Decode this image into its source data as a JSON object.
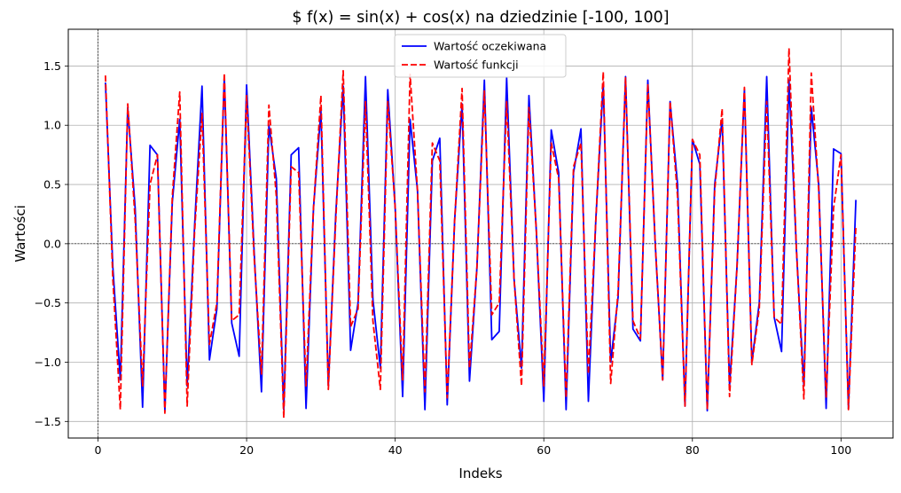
{
  "chart_data": {
    "type": "line",
    "title": "$ f(x) = sin(x) + cos(x) na dziedzinie [-100, 100]",
    "xlabel": "Indeks",
    "ylabel": "Wartości",
    "xlim": [
      -4,
      107
    ],
    "ylim": [
      -1.64,
      1.81
    ],
    "xticks": [
      0,
      20,
      40,
      60,
      80,
      100
    ],
    "yticks": [
      -1.5,
      -1.0,
      -0.5,
      0.0,
      0.5,
      1.0,
      1.5
    ],
    "ytick_labels": [
      "−1.5",
      "−1.0",
      "−0.5",
      "0.0",
      "0.5",
      "1.0",
      "1.5"
    ],
    "grid": true,
    "reference_lines": {
      "x": 0,
      "y": 0
    },
    "legend_position": "top-center",
    "series": [
      {
        "name": "Wartość oczekiwana",
        "color": "#0000ff",
        "style": "solid",
        "x": [
          1,
          2,
          3,
          4,
          5,
          6,
          7,
          8,
          9,
          10,
          11,
          12,
          13,
          14,
          15,
          16,
          17,
          18,
          19,
          20,
          21,
          22,
          23,
          24,
          25,
          26,
          27,
          28,
          29,
          30,
          31,
          32,
          33,
          34,
          35,
          36,
          37,
          38,
          39,
          40,
          41,
          42,
          43,
          44,
          45,
          46,
          47,
          48,
          49,
          50,
          51,
          52,
          53,
          54,
          55,
          56,
          57,
          58,
          59,
          60,
          61,
          62,
          63,
          64,
          65,
          66,
          67,
          68,
          69,
          70,
          71,
          72,
          73,
          74,
          75,
          76,
          77,
          78,
          79,
          80,
          81,
          82,
          83,
          84,
          85,
          86,
          87,
          88,
          89,
          90,
          91,
          92,
          93,
          94,
          95,
          96,
          97,
          98,
          99,
          100,
          101,
          102
        ],
        "values": [
          1.36,
          -0.2,
          -1.15,
          1.15,
          0.3,
          -1.38,
          0.83,
          0.75,
          -1.41,
          0.35,
          1.05,
          -1.2,
          0.15,
          1.33,
          -0.98,
          -0.55,
          1.41,
          -0.67,
          -0.95,
          1.34,
          -0.05,
          -1.25,
          1.0,
          0.55,
          -1.4,
          0.75,
          0.81,
          -1.39,
          0.3,
          1.12,
          -1.2,
          0.25,
          1.33,
          -0.9,
          -0.5,
          1.41,
          -0.47,
          -1.05,
          1.3,
          0.3,
          -1.29,
          1.05,
          0.45,
          -1.4,
          0.7,
          0.89,
          -1.36,
          0.2,
          1.18,
          -1.16,
          -0.2,
          1.38,
          -0.81,
          -0.74,
          1.4,
          -0.3,
          -1.05,
          1.25,
          0.1,
          -1.33,
          0.96,
          0.6,
          -1.4,
          0.6,
          0.97,
          -1.33,
          0.2,
          1.35,
          -1.0,
          -0.45,
          1.41,
          -0.72,
          -0.82,
          1.38,
          0.0,
          -1.15,
          1.2,
          0.5,
          -1.37,
          0.88,
          0.67,
          -1.41,
          0.5,
          1.05,
          -1.2,
          -0.2,
          1.3,
          -1.0,
          -0.5,
          1.41,
          -0.62,
          -0.91,
          1.38,
          -0.05,
          -1.2,
          1.15,
          0.5,
          -1.39,
          0.8,
          0.76,
          -1.39,
          0.37
        ]
      },
      {
        "name": "Wartość funkcji",
        "color": "#ff0000",
        "style": "dashed",
        "x": [
          1,
          2,
          3,
          4,
          5,
          6,
          7,
          8,
          9,
          10,
          11,
          12,
          13,
          14,
          15,
          16,
          17,
          18,
          19,
          20,
          21,
          22,
          23,
          24,
          25,
          26,
          27,
          28,
          29,
          30,
          31,
          32,
          33,
          34,
          35,
          36,
          37,
          38,
          39,
          40,
          41,
          42,
          43,
          44,
          45,
          46,
          47,
          48,
          49,
          50,
          51,
          52,
          53,
          54,
          55,
          56,
          57,
          58,
          59,
          60,
          61,
          62,
          63,
          64,
          65,
          66,
          67,
          68,
          69,
          70,
          71,
          72,
          73,
          74,
          75,
          76,
          77,
          78,
          79,
          80,
          81,
          82,
          83,
          84,
          85,
          86,
          87,
          88,
          89,
          90,
          91,
          92,
          93,
          94,
          95,
          96,
          97,
          98,
          99,
          100,
          101,
          102
        ],
        "values": [
          1.42,
          -0.3,
          -1.4,
          1.18,
          0.2,
          -1.2,
          0.5,
          0.75,
          -1.43,
          0.4,
          1.28,
          -1.37,
          0.1,
          1.1,
          -0.85,
          -0.5,
          1.44,
          -0.65,
          -0.6,
          1.25,
          -0.1,
          -1.1,
          1.17,
          0.4,
          -1.47,
          0.65,
          0.6,
          -1.2,
          0.3,
          1.25,
          -1.23,
          0.2,
          1.46,
          -0.7,
          -0.55,
          1.2,
          -0.65,
          -1.23,
          1.2,
          0.3,
          -1.15,
          1.43,
          0.45,
          -1.25,
          0.85,
          0.7,
          -1.3,
          0.2,
          1.31,
          -1.05,
          -0.2,
          1.29,
          -0.6,
          -0.5,
          1.2,
          -0.3,
          -1.2,
          1.15,
          0.1,
          -1.2,
          0.85,
          0.55,
          -1.3,
          0.65,
          0.85,
          -1.1,
          0.2,
          1.45,
          -1.18,
          -0.4,
          1.4,
          -0.65,
          -0.8,
          1.35,
          0.0,
          -1.15,
          1.2,
          0.4,
          -1.37,
          0.88,
          0.75,
          -1.4,
          0.45,
          1.14,
          -1.29,
          -0.2,
          1.32,
          -1.02,
          -0.55,
          1.2,
          -0.62,
          -0.68,
          1.65,
          -0.05,
          -1.31,
          1.44,
          0.45,
          -1.3,
          0.3,
          0.75,
          -1.4,
          0.15
        ]
      }
    ]
  }
}
